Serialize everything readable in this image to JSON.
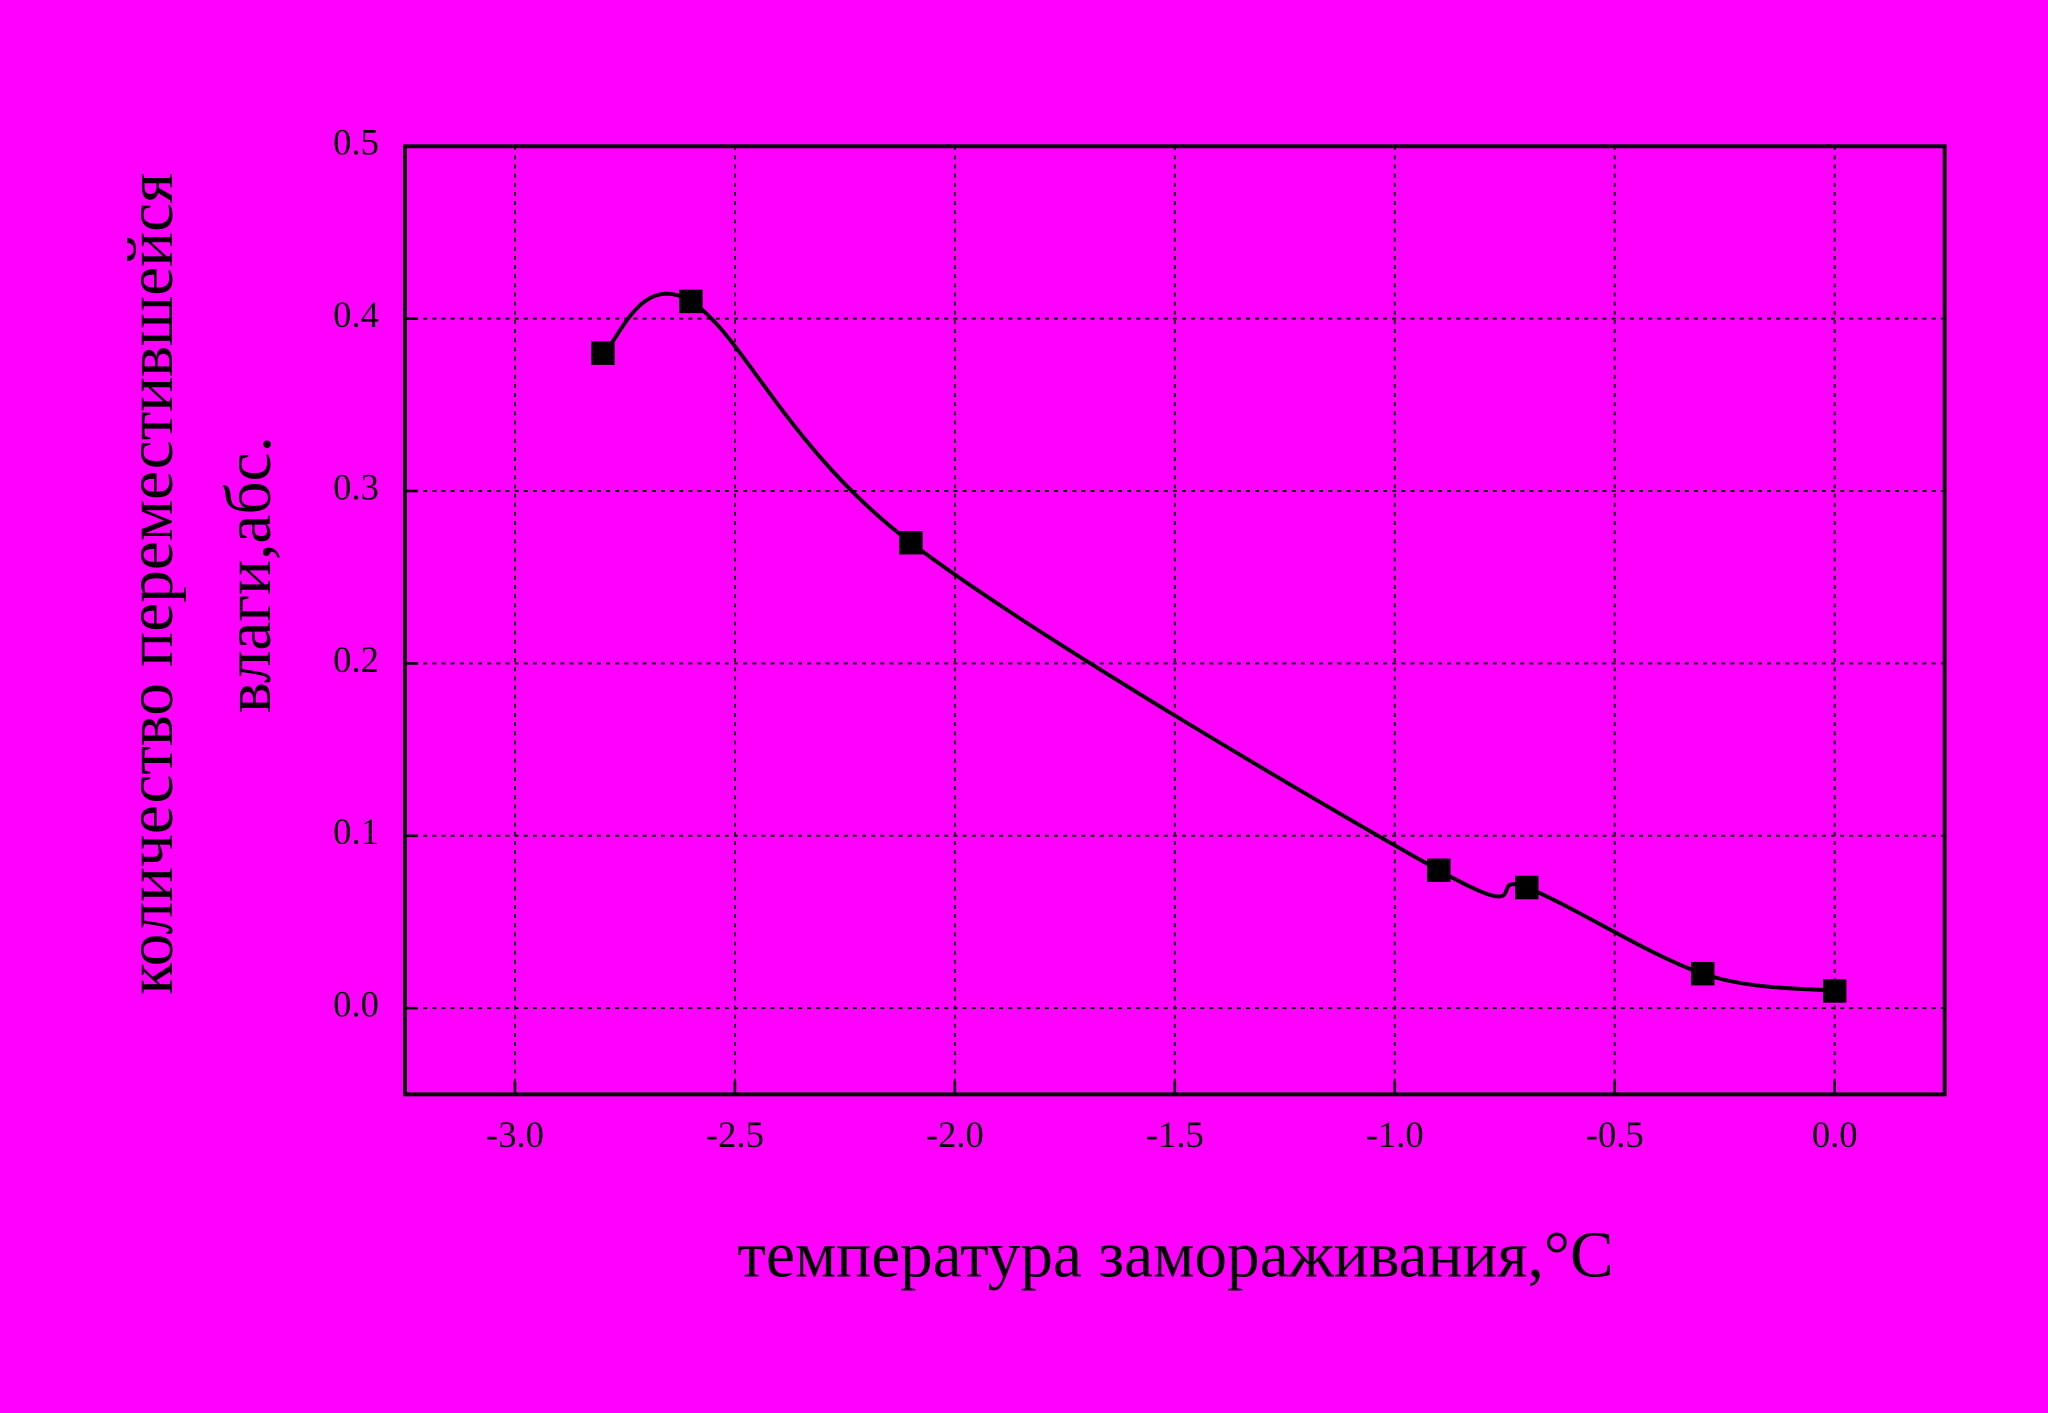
{
  "chart_data": {
    "type": "scatter",
    "x_label": "температура замораживания,°C",
    "y_label_lines": [
      "количество переместившейся",
      "влаги,абс."
    ],
    "series": [
      {
        "color": "#000000",
        "x": [
          -2.8,
          -2.6,
          -2.1,
          -0.9,
          -0.7,
          -0.3,
          0.0
        ],
        "values": [
          0.38,
          0.41,
          0.27,
          0.08,
          0.07,
          0.02,
          0.01
        ]
      }
    ],
    "xlim": [
      -3.25,
      0.25
    ],
    "xticks": [
      {
        "value": -3.0,
        "label": "-3.0"
      },
      -2.5,
      {
        "value": -2.0,
        "label": "-2.0"
      },
      -1.5,
      {
        "value": -1.0,
        "label": "-1.0"
      },
      -0.5,
      {
        "value": 0.0,
        "label": "0.0"
      }
    ],
    "ylim": [
      -0.05,
      0.5
    ],
    "yticks": [
      {
        "value": 0.0,
        "label": "0.0"
      },
      0.1,
      0.2,
      0.3,
      0.4,
      0.5
    ],
    "grid": true,
    "smooth_line": true
  }
}
